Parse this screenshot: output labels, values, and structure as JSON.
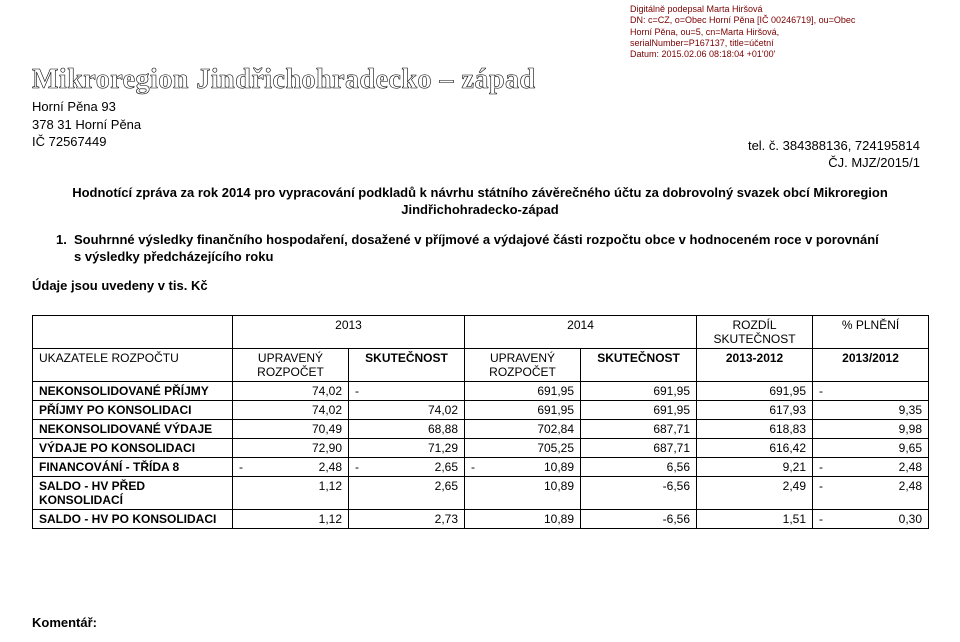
{
  "signature": {
    "line1": "Digitálně podepsal Marta Hiršová",
    "line2": "DN: c=CZ, o=Obec Horní Pěna [IČ 00246719], ou=Obec",
    "line3": "Horní Pěna, ou=5, cn=Marta Hiršová,",
    "line4": "serialNumber=P167137, title=účetní",
    "line5": "Datum: 2015.02.06 08:18:04 +01'00'"
  },
  "header": {
    "org_title": "Mikroregion Jindřichohradecko – západ",
    "address_line1": "Horní Pěna 93",
    "address_line2": "378 31  Horní Pěna",
    "ico_line": "IČ 72567449",
    "tel": "tel. č. 384388136, 724195814",
    "ref": "ČJ. MJZ/2015/1"
  },
  "report_title": {
    "line1": "Hodnotící zpráva za rok 2014 pro vypracování podkladů k návrhu státního závěrečného účtu za dobrovolný svazek obcí Mikroregion",
    "line2": "Jindřichohradecko-západ"
  },
  "section1": {
    "num": "1.",
    "text_line1": "Souhrnné výsledky finančního hospodaření, dosažené v příjmové a výdajové části rozpočtu obce v hodnoceném roce v porovnání",
    "text_line2": "s výsledky předcházejícího roku"
  },
  "units_note": "Údaje jsou uvedeny v tis. Kč",
  "table": {
    "head": {
      "y2013": "2013",
      "y2014": "2014",
      "diff_top": "ROZDÍL",
      "diff_bot": "SKUTEČNOST",
      "pct": "% PLNĚNÍ",
      "indicator": "UKAZATELE ROZPOČTU",
      "upraveny1": "UPRAVENÝ",
      "rozpocet1": "ROZPOČET",
      "skut1": "SKUTEČNOST",
      "upraveny2": "UPRAVENÝ",
      "rozpocet2": "ROZPOČET",
      "skut2": "SKUTEČNOST",
      "range": "2013-2012",
      "range_pct": "2013/2012"
    },
    "rows": [
      {
        "label": "NEKONSOLIDOVANÉ PŘÍJMY",
        "c1": "74,02",
        "c2_neg_dash": true,
        "c3": "691,95",
        "c4": "691,95",
        "c5": "691,95",
        "c6_neg_dash": true
      },
      {
        "label": "PŘÍJMY PO KONSOLIDACI",
        "c1": "74,02",
        "c2": "74,02",
        "c3": "691,95",
        "c4": "691,95",
        "c5": "617,93",
        "c6": "9,35"
      },
      {
        "label": "NEKONSOLIDOVANÉ VÝDAJE",
        "c1": "70,49",
        "c2": "68,88",
        "c3": "702,84",
        "c4": "687,71",
        "c5": "618,83",
        "c6": "9,98"
      },
      {
        "label": "VÝDAJE PO KONSOLIDACI",
        "c1": "72,90",
        "c2": "71,29",
        "c3": "705,25",
        "c4": "687,71",
        "c5": "616,42",
        "c6": "9,65"
      },
      {
        "label": "FINANCOVÁNÍ - TŘÍDA 8",
        "c1_neg": "2,48",
        "c2_neg": "2,65",
        "c3_neg": "10,89",
        "c4": "6,56",
        "c5": "9,21",
        "c6_neg": "2,48"
      },
      {
        "label": "SALDO - HV PŘED KONSOLIDACÍ",
        "c1": "1,12",
        "c2": "2,65",
        "c3": "10,89",
        "c4": "-6,56",
        "c5": "2,49",
        "c6_neg": "2,48"
      },
      {
        "label": "SALDO - HV PO KONSOLIDACI",
        "c1": "1,12",
        "c2": "2,73",
        "c3": "10,89",
        "c4": "-6,56",
        "c5": "1,51",
        "c6_neg": "0,30"
      }
    ]
  },
  "comment_label": "Komentář:"
}
